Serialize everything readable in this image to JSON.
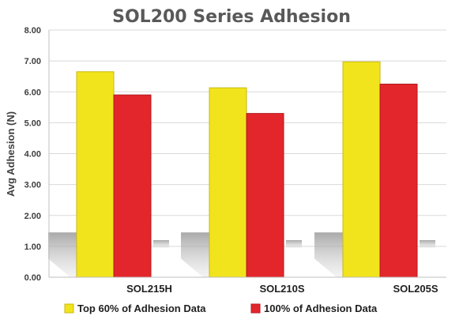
{
  "chart_data": {
    "type": "bar",
    "title": "SOL200 Series Adhesion",
    "xlabel": "",
    "ylabel": "Avg Adhesion (N)",
    "ylim": [
      0,
      8
    ],
    "y_ticks": [
      "0.00",
      "1.00",
      "2.00",
      "3.00",
      "4.00",
      "5.00",
      "6.00",
      "7.00",
      "8.00"
    ],
    "categories": [
      "SOL215H",
      "SOL210S",
      "SOL205S"
    ],
    "series": [
      {
        "name": "Top 60% of Adhesion Data",
        "color": "#f2e41c",
        "values": [
          6.65,
          6.13,
          6.97
        ]
      },
      {
        "name": "100% of Adhesion Data",
        "color": "#e3262b",
        "values": [
          5.9,
          5.3,
          6.25
        ]
      }
    ],
    "grid": true,
    "legend_position": "bottom"
  }
}
